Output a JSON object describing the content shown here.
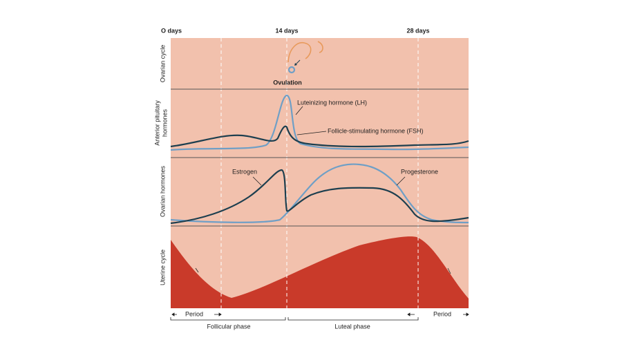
{
  "header": {
    "time_labels": [
      "O days",
      "14 days",
      "28 days"
    ]
  },
  "panels": [
    {
      "label": [
        "Ovarian cycle"
      ],
      "annotations": [
        "Ovulation"
      ]
    },
    {
      "label": [
        "Anterior pituitary",
        "hormones"
      ],
      "annotations": [
        "Luteinizing hormone (LH)",
        "Follicle-stimulating hormone (FSH)"
      ]
    },
    {
      "label": [
        "Ovarian hormones"
      ],
      "annotations": [
        "Estrogen",
        "Progesterone"
      ]
    },
    {
      "label": [
        "Uterine cycle"
      ],
      "annotations": []
    }
  ],
  "footer": {
    "periods": [
      "Period",
      "Period"
    ],
    "phases": [
      "Follicular phase",
      "Luteal phase"
    ]
  }
}
